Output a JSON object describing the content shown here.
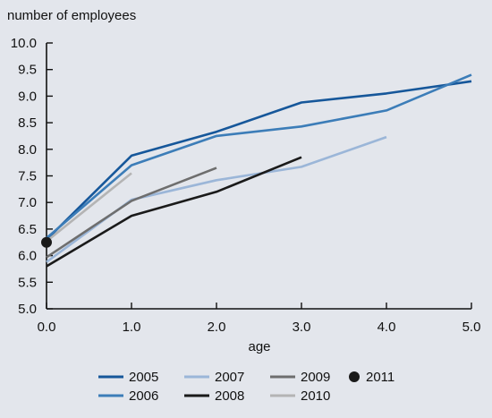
{
  "chart_data": {
    "type": "line",
    "title": "",
    "ylabel": "number of employees",
    "xlabel": "age",
    "xlim": [
      0,
      5
    ],
    "ylim": [
      5.0,
      10.0
    ],
    "x_ticks": [
      "0.0",
      "1.0",
      "2.0",
      "3.0",
      "4.0",
      "5.0"
    ],
    "y_ticks": [
      "5.0",
      "5.5",
      "6.0",
      "6.5",
      "7.0",
      "7.5",
      "8.0",
      "8.5",
      "9.0",
      "9.5",
      "10.0"
    ],
    "grid": false,
    "legend_position": "bottom",
    "series": [
      {
        "name": "2005",
        "color": "#16579a",
        "x": [
          0,
          1,
          2,
          3,
          4,
          5
        ],
        "y": [
          6.3,
          7.88,
          8.33,
          8.88,
          9.05,
          9.28
        ]
      },
      {
        "name": "2006",
        "color": "#3c7db8",
        "x": [
          0,
          1,
          2,
          3,
          4,
          5
        ],
        "y": [
          6.33,
          7.7,
          8.25,
          8.43,
          8.73,
          9.4
        ]
      },
      {
        "name": "2007",
        "color": "#9bb6d8",
        "x": [
          0,
          1,
          2,
          3,
          4
        ],
        "y": [
          5.88,
          7.05,
          7.42,
          7.67,
          8.23
        ]
      },
      {
        "name": "2008",
        "color": "#1a1a1a",
        "x": [
          0,
          1,
          2,
          3
        ],
        "y": [
          5.8,
          6.75,
          7.2,
          7.85
        ]
      },
      {
        "name": "2009",
        "color": "#6e6e6e",
        "x": [
          0,
          1,
          2
        ],
        "y": [
          5.97,
          7.03,
          7.65
        ]
      },
      {
        "name": "2010",
        "color": "#b4b4b4",
        "x": [
          0,
          1
        ],
        "y": [
          6.27,
          7.55
        ]
      },
      {
        "name": "2011",
        "color": "#1a1a1a",
        "marker": "dot",
        "x": [
          0
        ],
        "y": [
          6.25
        ]
      }
    ]
  }
}
